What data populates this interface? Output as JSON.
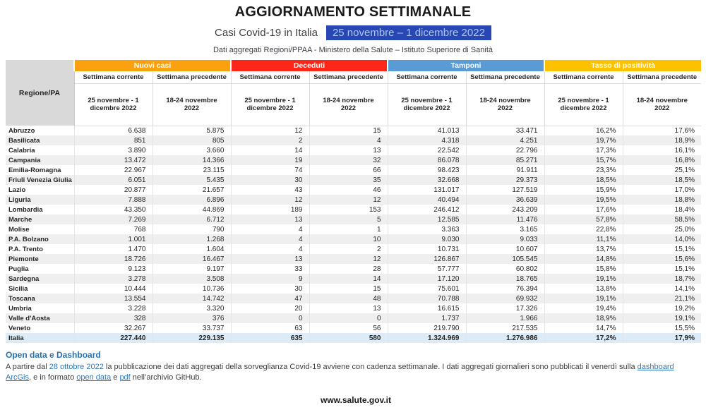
{
  "header": {
    "title": "AGGIORNAMENTO SETTIMANALE",
    "subtitle": "Casi Covid-19 in Italia",
    "date_range": "25 novembre – 1 dicembre 2022",
    "source": "Dati aggregati Regioni/PPAA - Ministero della Salute – Istituto Superiore di Sanità",
    "highlight_bg": "#2847B4",
    "highlight_text": "#A9C7F2"
  },
  "table": {
    "region_header": "Regione/PA",
    "groups": [
      {
        "label": "Nuovi casi",
        "color": "#FBA00F"
      },
      {
        "label": "Deceduti",
        "color": "#FC2718"
      },
      {
        "label": "Tamponi",
        "color": "#5B9BD5"
      },
      {
        "label": "Tasso di positività",
        "color": "#FFC000"
      }
    ],
    "subheader_current": "Settimana corrente",
    "subheader_previous": "Settimana precedente",
    "week_current": "25 novembre - 1 dicembre 2022",
    "week_previous": "18-24 novembre 2022",
    "total_row_bg": "#DCEBF5",
    "alt_row_bg": "#EFEFEF",
    "rows": [
      {
        "region": "Abruzzo",
        "values": [
          "6.638",
          "5.875",
          "12",
          "15",
          "41.013",
          "33.471",
          "16,2%",
          "17,6%"
        ]
      },
      {
        "region": "Basilicata",
        "values": [
          "851",
          "805",
          "2",
          "4",
          "4.318",
          "4.251",
          "19,7%",
          "18,9%"
        ]
      },
      {
        "region": "Calabria",
        "values": [
          "3.890",
          "3.660",
          "14",
          "13",
          "22.542",
          "22.796",
          "17,3%",
          "16,1%"
        ]
      },
      {
        "region": "Campania",
        "values": [
          "13.472",
          "14.366",
          "19",
          "32",
          "86.078",
          "85.271",
          "15,7%",
          "16,8%"
        ]
      },
      {
        "region": "Emilia-Romagna",
        "values": [
          "22.967",
          "23.115",
          "74",
          "66",
          "98.423",
          "91.911",
          "23,3%",
          "25,1%"
        ]
      },
      {
        "region": "Friuli Venezia Giulia",
        "values": [
          "6.051",
          "5.435",
          "30",
          "35",
          "32.668",
          "29.373",
          "18,5%",
          "18,5%"
        ]
      },
      {
        "region": "Lazio",
        "values": [
          "20.877",
          "21.657",
          "43",
          "46",
          "131.017",
          "127.519",
          "15,9%",
          "17,0%"
        ]
      },
      {
        "region": "Liguria",
        "values": [
          "7.888",
          "6.896",
          "12",
          "12",
          "40.494",
          "36.639",
          "19,5%",
          "18,8%"
        ]
      },
      {
        "region": "Lombardia",
        "values": [
          "43.350",
          "44.869",
          "189",
          "153",
          "246.412",
          "243.209",
          "17,6%",
          "18,4%"
        ]
      },
      {
        "region": "Marche",
        "values": [
          "7.269",
          "6.712",
          "13",
          "5",
          "12.585",
          "11.476",
          "57,8%",
          "58,5%"
        ]
      },
      {
        "region": "Molise",
        "values": [
          "768",
          "790",
          "4",
          "1",
          "3.363",
          "3.165",
          "22,8%",
          "25,0%"
        ]
      },
      {
        "region": "P.A. Bolzano",
        "values": [
          "1.001",
          "1.268",
          "4",
          "10",
          "9.030",
          "9.033",
          "11,1%",
          "14,0%"
        ]
      },
      {
        "region": "P.A. Trento",
        "values": [
          "1.470",
          "1.604",
          "4",
          "2",
          "10.731",
          "10.607",
          "13,7%",
          "15,1%"
        ]
      },
      {
        "region": "Piemonte",
        "values": [
          "18.726",
          "16.467",
          "13",
          "12",
          "126.867",
          "105.545",
          "14,8%",
          "15,6%"
        ]
      },
      {
        "region": "Puglia",
        "values": [
          "9.123",
          "9.197",
          "33",
          "28",
          "57.777",
          "60.802",
          "15,8%",
          "15,1%"
        ]
      },
      {
        "region": "Sardegna",
        "values": [
          "3.278",
          "3.508",
          "9",
          "14",
          "17.120",
          "18.765",
          "19,1%",
          "18,7%"
        ]
      },
      {
        "region": "Sicilia",
        "values": [
          "10.444",
          "10.736",
          "30",
          "15",
          "75.601",
          "76.394",
          "13,8%",
          "14,1%"
        ]
      },
      {
        "region": "Toscana",
        "values": [
          "13.554",
          "14.742",
          "47",
          "48",
          "70.788",
          "69.932",
          "19,1%",
          "21,1%"
        ]
      },
      {
        "region": "Umbria",
        "values": [
          "3.228",
          "3.320",
          "20",
          "13",
          "16.615",
          "17.326",
          "19,4%",
          "19,2%"
        ]
      },
      {
        "region": "Valle d'Aosta",
        "values": [
          "328",
          "376",
          "0",
          "0",
          "1.737",
          "1.966",
          "18,9%",
          "19,1%"
        ]
      },
      {
        "region": "Veneto",
        "values": [
          "32.267",
          "33.737",
          "63",
          "56",
          "219.790",
          "217.535",
          "14,7%",
          "15,5%"
        ]
      },
      {
        "region": "Italia",
        "values": [
          "227.440",
          "229.135",
          "635",
          "580",
          "1.324.969",
          "1.276.986",
          "17,2%",
          "17,9%"
        ],
        "total": true
      }
    ]
  },
  "footer": {
    "heading": "Open data e Dashboard",
    "heading_color": "#2272B9",
    "link_color": "#2E79BD",
    "note_parts": [
      "A partire dal ",
      " la pubblicazione dei dati aggregati della sorveglianza Covid-19 avviene con cadenza settimanale. I dati aggregati giornalieri sono pubblicati il venerdì sulla ",
      ", e in formato ",
      " e ",
      " nell’archivio GitHub."
    ],
    "links": {
      "date": "28 ottobre 2022",
      "arcgis": "dashboard ArcGis",
      "open_data": "open data",
      "pdf": "pdf"
    },
    "site": "www.salute.gov.it"
  }
}
